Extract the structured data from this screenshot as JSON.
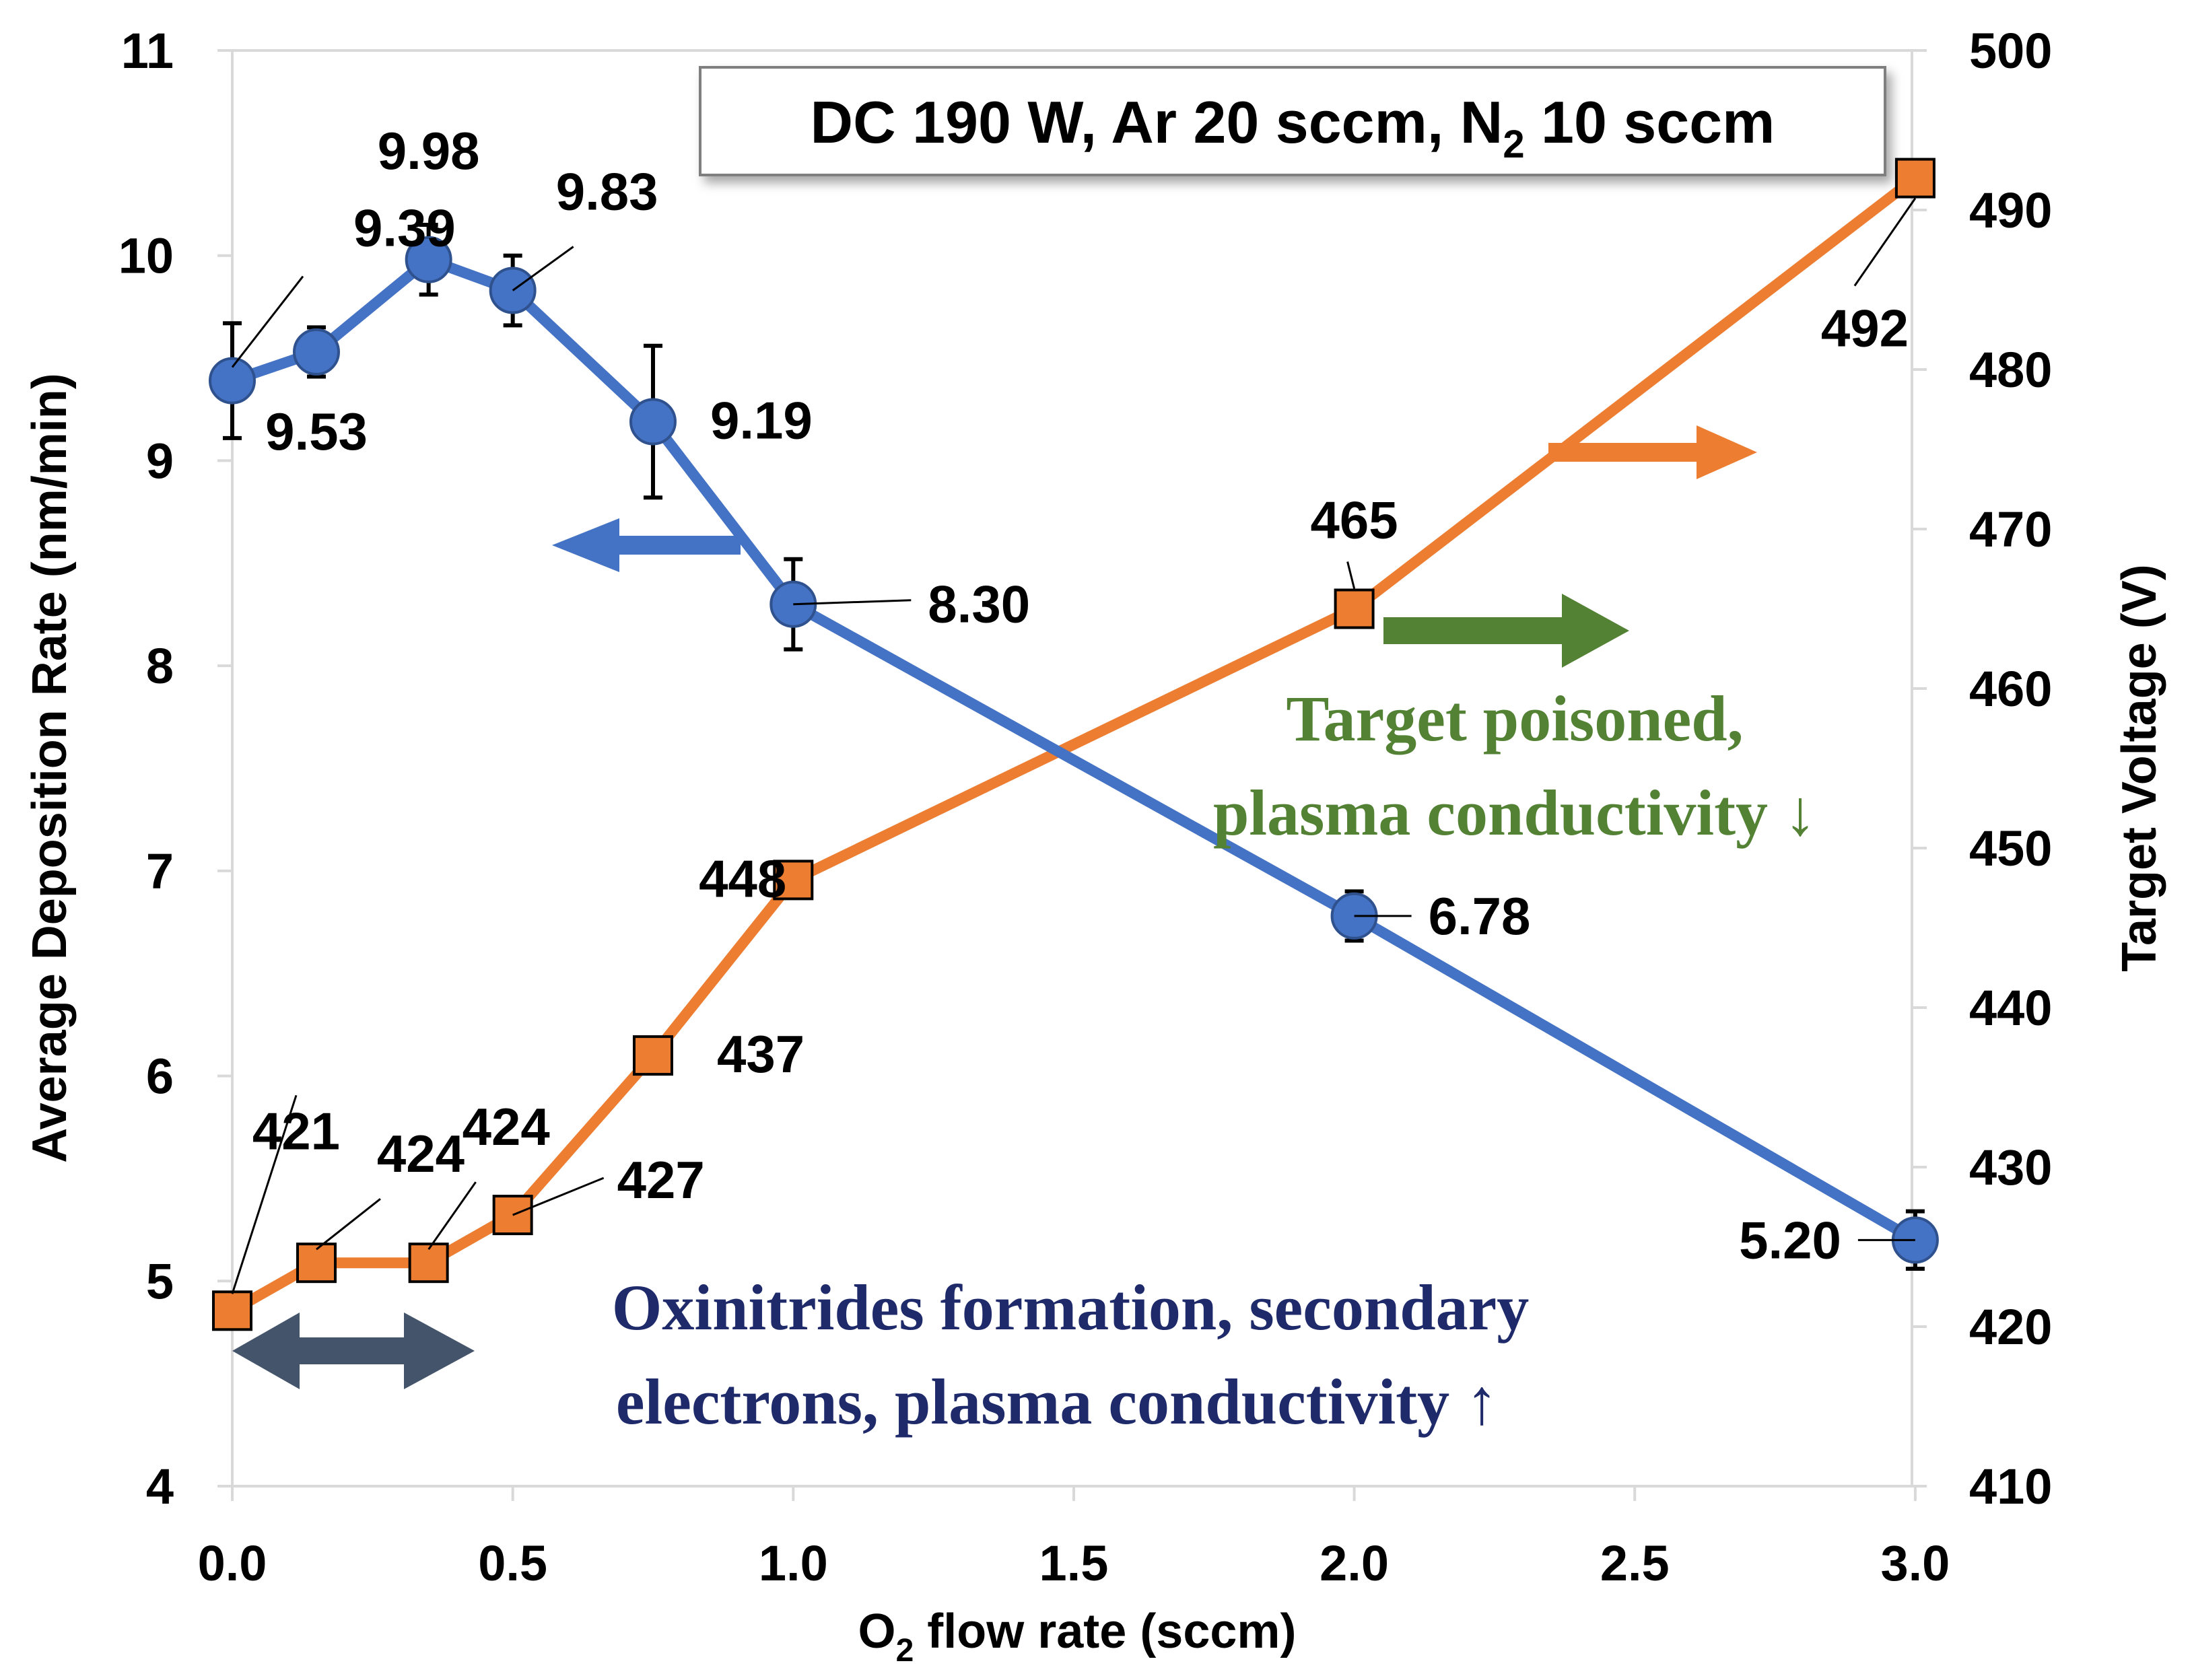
{
  "chart_data": {
    "type": "line",
    "xlabel": "O2 flow rate (sccm)",
    "xlabel_main": "O",
    "xlabel_sub": "2",
    "xlabel_rest": " flow rate (sccm)",
    "xlim": [
      0,
      3
    ],
    "xticks": [
      0,
      0.5,
      1,
      1.5,
      2,
      2.5,
      3
    ],
    "xtick_labels": [
      "0.0",
      "0.5",
      "1.0",
      "1.5",
      "2.0",
      "2.5",
      "3.0"
    ],
    "ylabel_left": "Average Deposition Rate (nm/min)",
    "ylim_left": [
      4,
      11
    ],
    "yticks_left": [
      "4",
      "5",
      "6",
      "7",
      "8",
      "9",
      "10",
      "11"
    ],
    "ylabel_right": "Target Voltage (V)",
    "ylim_right": [
      410,
      500
    ],
    "yticks_right": [
      "410",
      "420",
      "430",
      "440",
      "450",
      "460",
      "470",
      "480",
      "490",
      "500"
    ],
    "condition_box": {
      "part1": "DC 190 W, Ar 20 sccm, N",
      "sub": "2",
      "part2": " 10 sccm"
    },
    "series": [
      {
        "name": "Average Deposition Rate",
        "axis": "left",
        "color": "#4472C4",
        "marker": "circle",
        "x": [
          0,
          0.15,
          0.35,
          0.5,
          0.75,
          1.0,
          2.0,
          3.0
        ],
        "values": [
          9.39,
          9.53,
          9.98,
          9.83,
          9.19,
          8.3,
          6.78,
          5.2
        ],
        "errors": [
          0.28,
          0.12,
          0.17,
          0.17,
          0.37,
          0.22,
          0.12,
          0.14
        ],
        "labels": [
          "9.39",
          "9.53",
          "9.98",
          "9.83",
          "9.19",
          "8.30",
          "6.78",
          "5.20"
        ]
      },
      {
        "name": "Target Voltage",
        "axis": "right",
        "color": "#ED7D31",
        "marker": "square",
        "x": [
          0,
          0.15,
          0.35,
          0.5,
          0.75,
          1.0,
          2.0,
          3.0
        ],
        "values": [
          421,
          424,
          424,
          427,
          437,
          448,
          465,
          492
        ],
        "labels": [
          "421",
          "424",
          "424",
          "427",
          "437",
          "448",
          "465",
          "492"
        ]
      }
    ],
    "annotations": {
      "poisoned_line1": "Target poisoned,",
      "poisoned_line2": "plasma conductivity ↓",
      "oxinitride_line1": "Oxinitrides formation, secondary",
      "oxinitride_line2": "electrons, plasma conductivity ↑"
    },
    "colors": {
      "deposition": "#4472C4",
      "voltage": "#ED7D31",
      "poisoned": "#548235",
      "oxinitride": "#1F2A6B",
      "double_arrow": "#44546A"
    }
  }
}
